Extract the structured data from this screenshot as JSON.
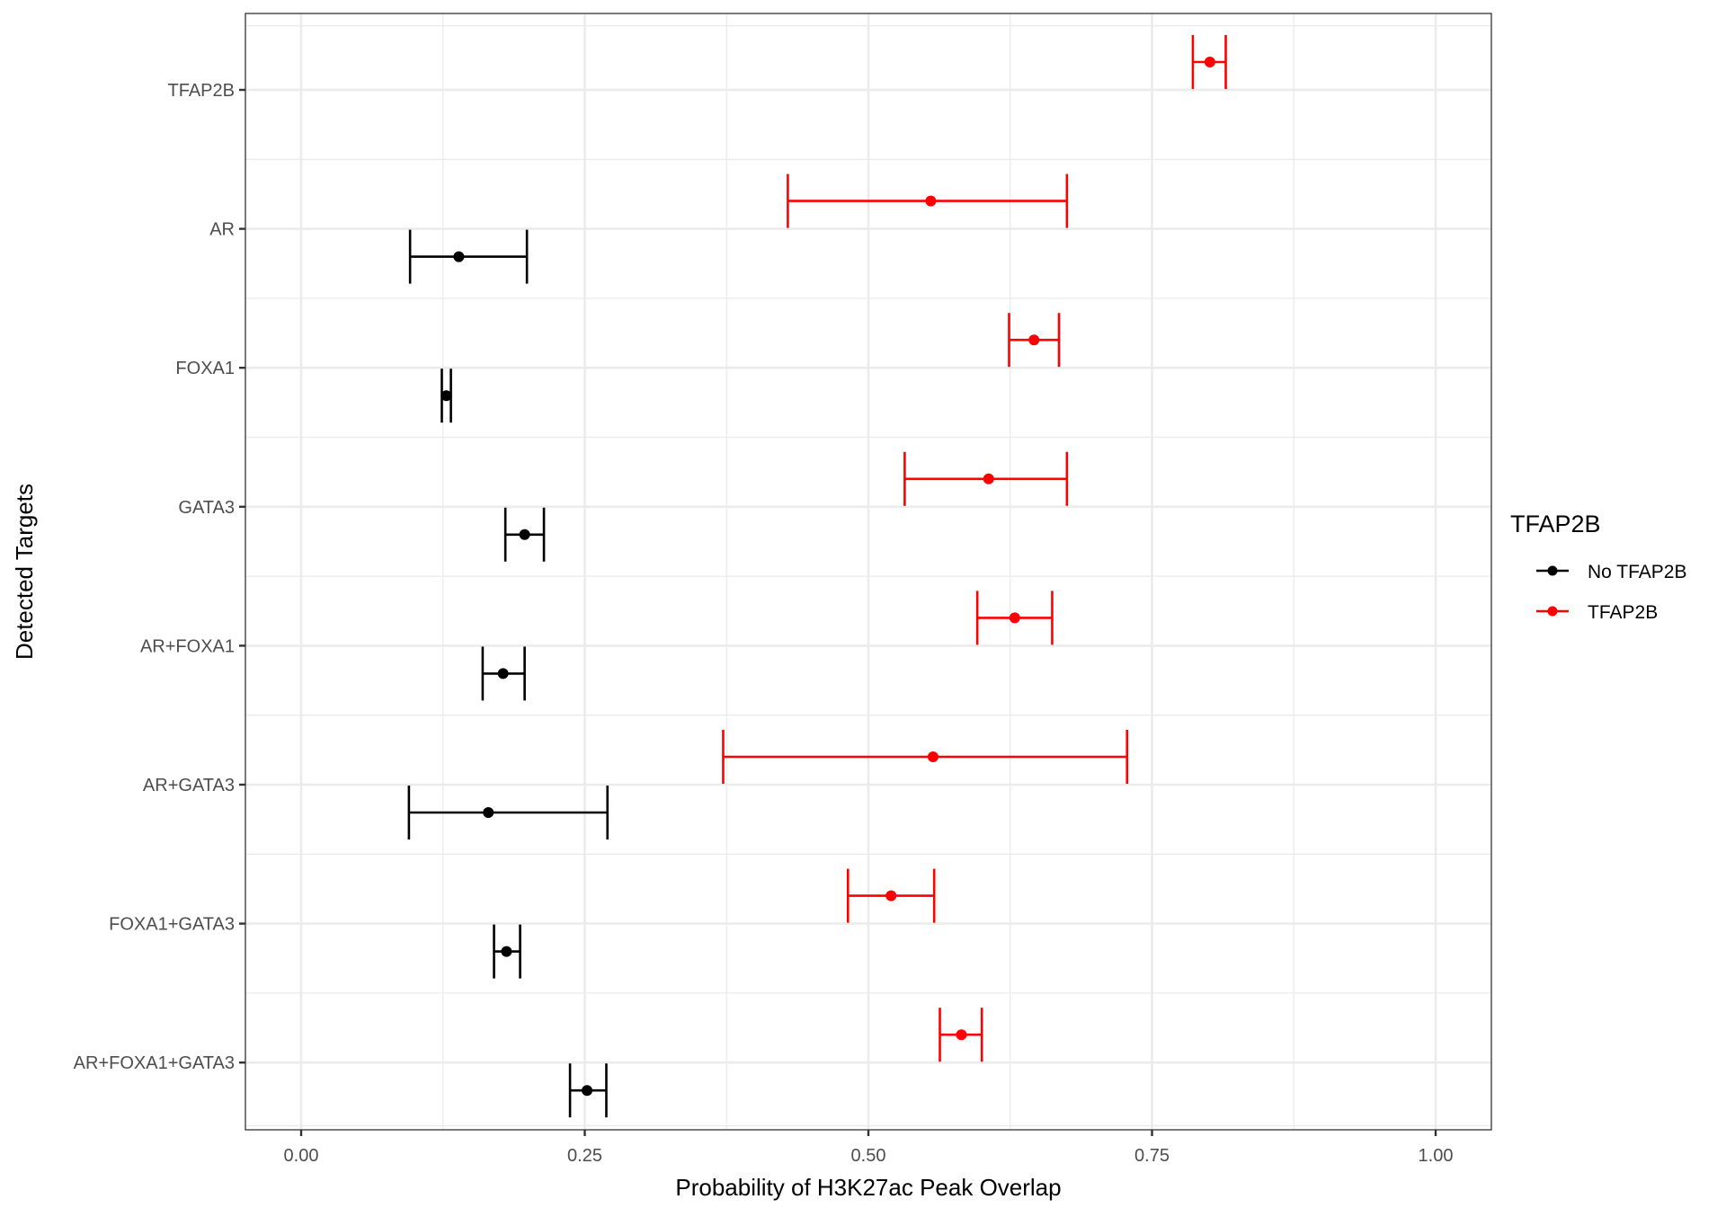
{
  "chart_data": {
    "type": "scatter",
    "subtype": "point-range (dodged error bars)",
    "title": "",
    "xlabel": "Probability of H3K27ac Peak Overlap",
    "ylabel": "Detected Targets",
    "xlim": [
      0,
      1
    ],
    "x_ticks": [
      0.0,
      0.25,
      0.5,
      0.75,
      1.0
    ],
    "x_tick_labels": [
      "0.00",
      "0.25",
      "0.50",
      "0.75",
      "1.00"
    ],
    "categories": [
      "TFAP2B",
      "AR",
      "FOXA1",
      "GATA3",
      "AR+FOXA1",
      "AR+GATA3",
      "FOXA1+GATA3",
      "AR+FOXA1+GATA3"
    ],
    "grid": true,
    "legend": {
      "title": "TFAP2B",
      "position": "right",
      "entries": [
        "No TFAP2B",
        "TFAP2B"
      ]
    },
    "series": [
      {
        "name": "No TFAP2B",
        "color": "#000000",
        "points": [
          {
            "category": "TFAP2B",
            "value": null,
            "lower": null,
            "upper": null
          },
          {
            "category": "AR",
            "value": 0.139,
            "lower": 0.096,
            "upper": 0.199
          },
          {
            "category": "FOXA1",
            "value": 0.128,
            "lower": 0.124,
            "upper": 0.132
          },
          {
            "category": "GATA3",
            "value": 0.197,
            "lower": 0.18,
            "upper": 0.214
          },
          {
            "category": "AR+FOXA1",
            "value": 0.178,
            "lower": 0.16,
            "upper": 0.197
          },
          {
            "category": "AR+GATA3",
            "value": 0.165,
            "lower": 0.095,
            "upper": 0.27
          },
          {
            "category": "FOXA1+GATA3",
            "value": 0.181,
            "lower": 0.17,
            "upper": 0.193
          },
          {
            "category": "AR+FOXA1+GATA3",
            "value": 0.252,
            "lower": 0.237,
            "upper": 0.269
          }
        ]
      },
      {
        "name": "TFAP2B",
        "color": "#ff0000",
        "points": [
          {
            "category": "TFAP2B",
            "value": 0.801,
            "lower": 0.786,
            "upper": 0.815
          },
          {
            "category": "AR",
            "value": 0.555,
            "lower": 0.429,
            "upper": 0.675
          },
          {
            "category": "FOXA1",
            "value": 0.646,
            "lower": 0.624,
            "upper": 0.668
          },
          {
            "category": "GATA3",
            "value": 0.606,
            "lower": 0.532,
            "upper": 0.675
          },
          {
            "category": "AR+FOXA1",
            "value": 0.629,
            "lower": 0.596,
            "upper": 0.662
          },
          {
            "category": "AR+GATA3",
            "value": 0.557,
            "lower": 0.372,
            "upper": 0.728
          },
          {
            "category": "FOXA1+GATA3",
            "value": 0.52,
            "lower": 0.482,
            "upper": 0.558
          },
          {
            "category": "AR+FOXA1+GATA3",
            "value": 0.582,
            "lower": 0.563,
            "upper": 0.6
          }
        ]
      }
    ]
  }
}
